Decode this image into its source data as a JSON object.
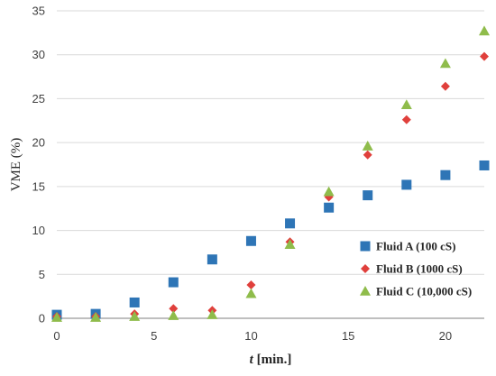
{
  "chart_data": {
    "type": "scatter",
    "title": "",
    "xlabel_italic": "t",
    "xlabel_rest": " [min.]",
    "ylabel": "VME (%)",
    "xlim": [
      0,
      22
    ],
    "ylim": [
      0,
      35
    ],
    "x_ticks": [
      0,
      5,
      10,
      15,
      20
    ],
    "y_ticks": [
      0,
      5,
      10,
      15,
      20,
      25,
      30,
      35
    ],
    "grid": "horizontal",
    "legend_position": "bottom-right",
    "series": [
      {
        "name": "Fluid A (100 cS)",
        "marker": "square",
        "color": "#2e75b6",
        "x": [
          0,
          2,
          4,
          6,
          8,
          10,
          12,
          14,
          16,
          18,
          20,
          22
        ],
        "y": [
          0.4,
          0.5,
          1.8,
          4.1,
          6.7,
          8.8,
          10.8,
          12.6,
          14.0,
          15.2,
          16.3,
          17.4
        ]
      },
      {
        "name": "Fluid B (1000 cS)",
        "marker": "diamond",
        "color": "#e0403c",
        "x": [
          0,
          2,
          4,
          6,
          8,
          10,
          12,
          14,
          16,
          18,
          20,
          22
        ],
        "y": [
          0.2,
          0.2,
          0.5,
          1.1,
          0.9,
          3.8,
          8.7,
          13.8,
          18.6,
          22.6,
          26.4,
          29.8
        ]
      },
      {
        "name": "Fluid C (10,000 cS)",
        "marker": "triangle",
        "color": "#8fbc4b",
        "x": [
          0,
          2,
          4,
          6,
          8,
          10,
          12,
          14,
          16,
          18,
          20,
          22
        ],
        "y": [
          0.1,
          0.1,
          0.2,
          0.3,
          0.4,
          2.8,
          8.4,
          14.4,
          19.6,
          24.3,
          29.0,
          32.7
        ]
      }
    ]
  }
}
